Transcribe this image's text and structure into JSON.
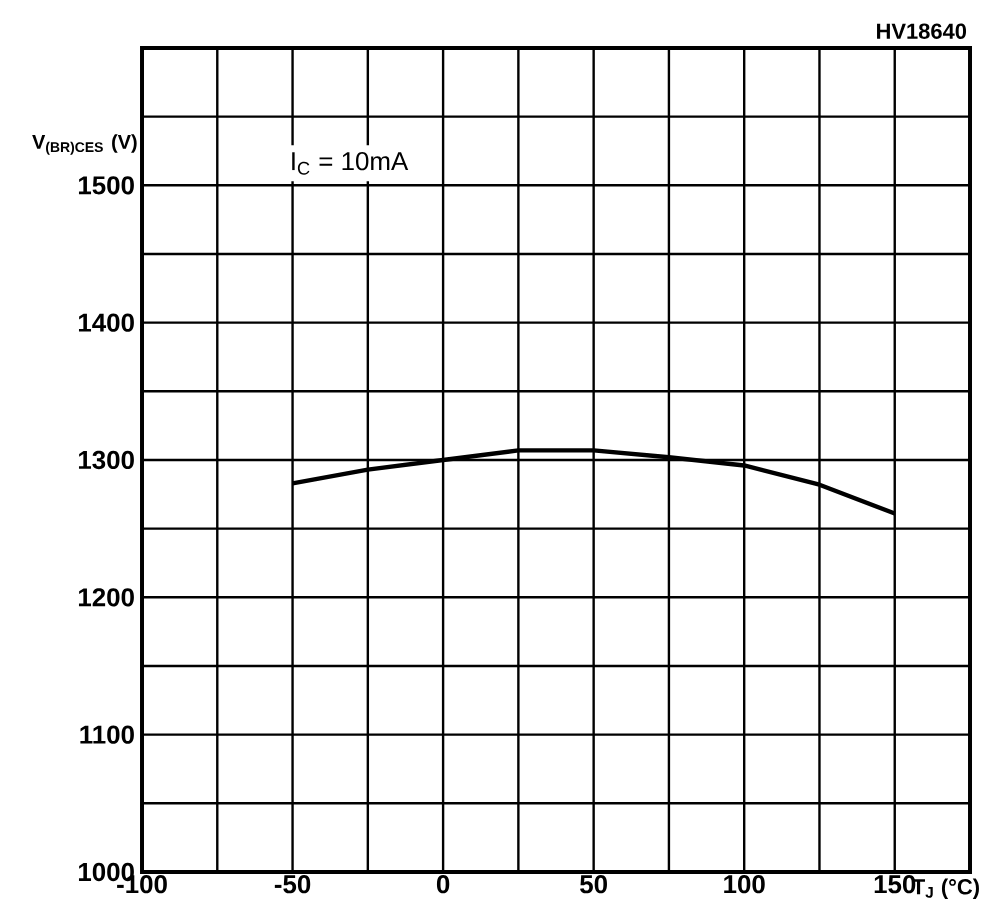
{
  "chart_data": {
    "type": "line",
    "xlabel": "T$_{J}$ (°C)",
    "ylabel": "V$_{(BR)CES}$ (V)",
    "annotations": [
      "HV18640",
      "I$_{C}$ = 10mA"
    ],
    "x": [
      -50,
      -25,
      0,
      25,
      50,
      75,
      100,
      125,
      150
    ],
    "values": [
      1283,
      1293,
      1300,
      1307,
      1307,
      1302,
      1296,
      1282,
      1261
    ],
    "color": "#000000",
    "marker": "none",
    "line_style": "solid",
    "grid": true,
    "xlim": [
      -100,
      175
    ],
    "ylim": [
      1000,
      1600
    ],
    "xticks": [
      -100,
      {
        "value": -75,
        "label": null
      },
      -50,
      {
        "value": -25,
        "label": null
      },
      0,
      {
        "value": 25,
        "label": null
      },
      50,
      {
        "value": 75,
        "label": null
      },
      100,
      {
        "value": 125,
        "label": null
      },
      150,
      {
        "value": 175,
        "label": null
      }
    ],
    "yticks": [
      1000,
      {
        "value": 1050,
        "label": null
      },
      1100,
      {
        "value": 1150,
        "label": null
      },
      1200,
      {
        "value": 1250,
        "label": null
      },
      1300,
      {
        "value": 1350,
        "label": null
      },
      1400,
      {
        "value": 1450,
        "label": null
      },
      1500,
      {
        "value": 1550,
        "label": null
      },
      {
        "value": 1600,
        "label": null
      }
    ]
  }
}
